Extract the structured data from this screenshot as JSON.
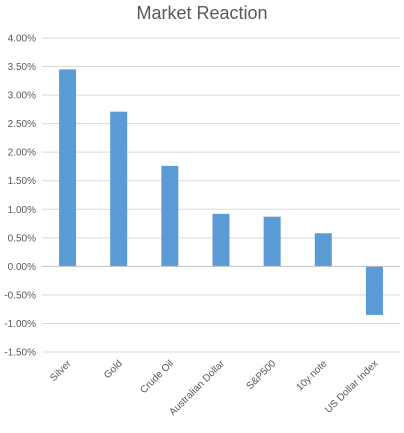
{
  "chart_data": {
    "type": "bar",
    "title": "Market Reaction",
    "categories": [
      "Silver",
      "Gold",
      "Crude Oil",
      "Australian Dollar",
      "S&P500",
      "10y note",
      "US Dollar Index"
    ],
    "values": [
      3.45,
      2.71,
      1.76,
      0.92,
      0.87,
      0.58,
      -0.85
    ],
    "ylim": [
      -1.5,
      4.0
    ],
    "ytick_step": 0.5,
    "ytick_labels": [
      "4.00%",
      "3.50%",
      "3.00%",
      "2.50%",
      "2.00%",
      "1.50%",
      "1.00%",
      "0.50%",
      "0.00%",
      "-0.50%",
      "-1.00%",
      "-1.50%"
    ],
    "grid": true,
    "legend": "none",
    "bar_color": "#5b9bd5",
    "grid_color": "#d9d9d9",
    "axis_color": "#bfbfbf"
  }
}
